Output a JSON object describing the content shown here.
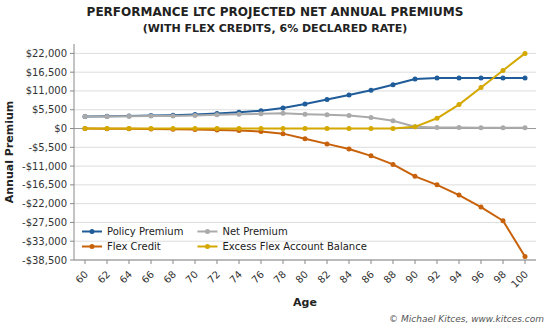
{
  "chart_data": {
    "type": "line",
    "title": "PERFORMANCE LTC PROJECTED NET ANNUAL PREMIUMS",
    "subtitle": "(WITH FLEX CREDITS, 6% DECLARED RATE)",
    "x_label": "Age",
    "y_label": "Annual Premium",
    "annotations": [
      "© Michael Kitces, www.kitces.com"
    ],
    "x": [
      60,
      62,
      64,
      66,
      68,
      70,
      72,
      74,
      76,
      78,
      80,
      82,
      84,
      86,
      88,
      90,
      92,
      94,
      96,
      98,
      100
    ],
    "series": [
      {
        "name": "Policy Premium",
        "color": "#1F5C99",
        "marker": "circle",
        "values": [
          3500,
          3600,
          3700,
          3800,
          3900,
          4100,
          4400,
          4800,
          5200,
          6000,
          7200,
          8500,
          9800,
          11200,
          12800,
          14500,
          14800,
          14800,
          14800,
          14800,
          14800
        ]
      },
      {
        "name": "Flex Credit",
        "color": "#C8620A",
        "marker": "circle",
        "values": [
          0,
          -50,
          -100,
          -150,
          -200,
          -300,
          -400,
          -600,
          -900,
          -1500,
          -3000,
          -4500,
          -6000,
          -8000,
          -10500,
          -14000,
          -16500,
          -19500,
          -23000,
          -27000,
          -37500
        ]
      },
      {
        "name": "Net Premium",
        "color": "#AAAAAA",
        "marker": "circle",
        "values": [
          3500,
          3550,
          3600,
          3650,
          3700,
          3800,
          4000,
          4200,
          4300,
          4500,
          4200,
          4000,
          3800,
          3200,
          2300,
          500,
          300,
          300,
          200,
          200,
          200
        ]
      },
      {
        "name": "Excess Flex Account Balance",
        "color": "#D4A800",
        "marker": "circle",
        "values": [
          0,
          0,
          0,
          0,
          0,
          0,
          0,
          0,
          0,
          0,
          0,
          0,
          0,
          0,
          0,
          500,
          3000,
          7000,
          12000,
          17000,
          22000
        ]
      }
    ],
    "xlim": [
      59,
      101
    ],
    "xticks": [
      60,
      62,
      64,
      66,
      68,
      70,
      72,
      74,
      76,
      78,
      80,
      82,
      84,
      86,
      88,
      90,
      92,
      94,
      96,
      98,
      100
    ],
    "ylim": [
      -38500,
      24750
    ],
    "yticks": [
      {
        "value": -38500,
        "label": "-$38,500"
      },
      {
        "value": -33000,
        "label": "-$33,000"
      },
      {
        "value": -27500,
        "label": "-$27,500"
      },
      {
        "value": -22000,
        "label": "-$22,000"
      },
      {
        "value": -16500,
        "label": "-$16,500"
      },
      {
        "value": -11000,
        "label": "-$11,000"
      },
      {
        "value": -5500,
        "label": "-$5,500"
      },
      {
        "value": 0,
        "label": "$0"
      },
      {
        "value": 5500,
        "label": "$5,500"
      },
      {
        "value": 11000,
        "label": "$11,000"
      },
      {
        "value": 16500,
        "label": "$16,500"
      },
      {
        "value": 22000,
        "label": "$22,000"
      }
    ],
    "grid": true,
    "legend": "lower left"
  }
}
